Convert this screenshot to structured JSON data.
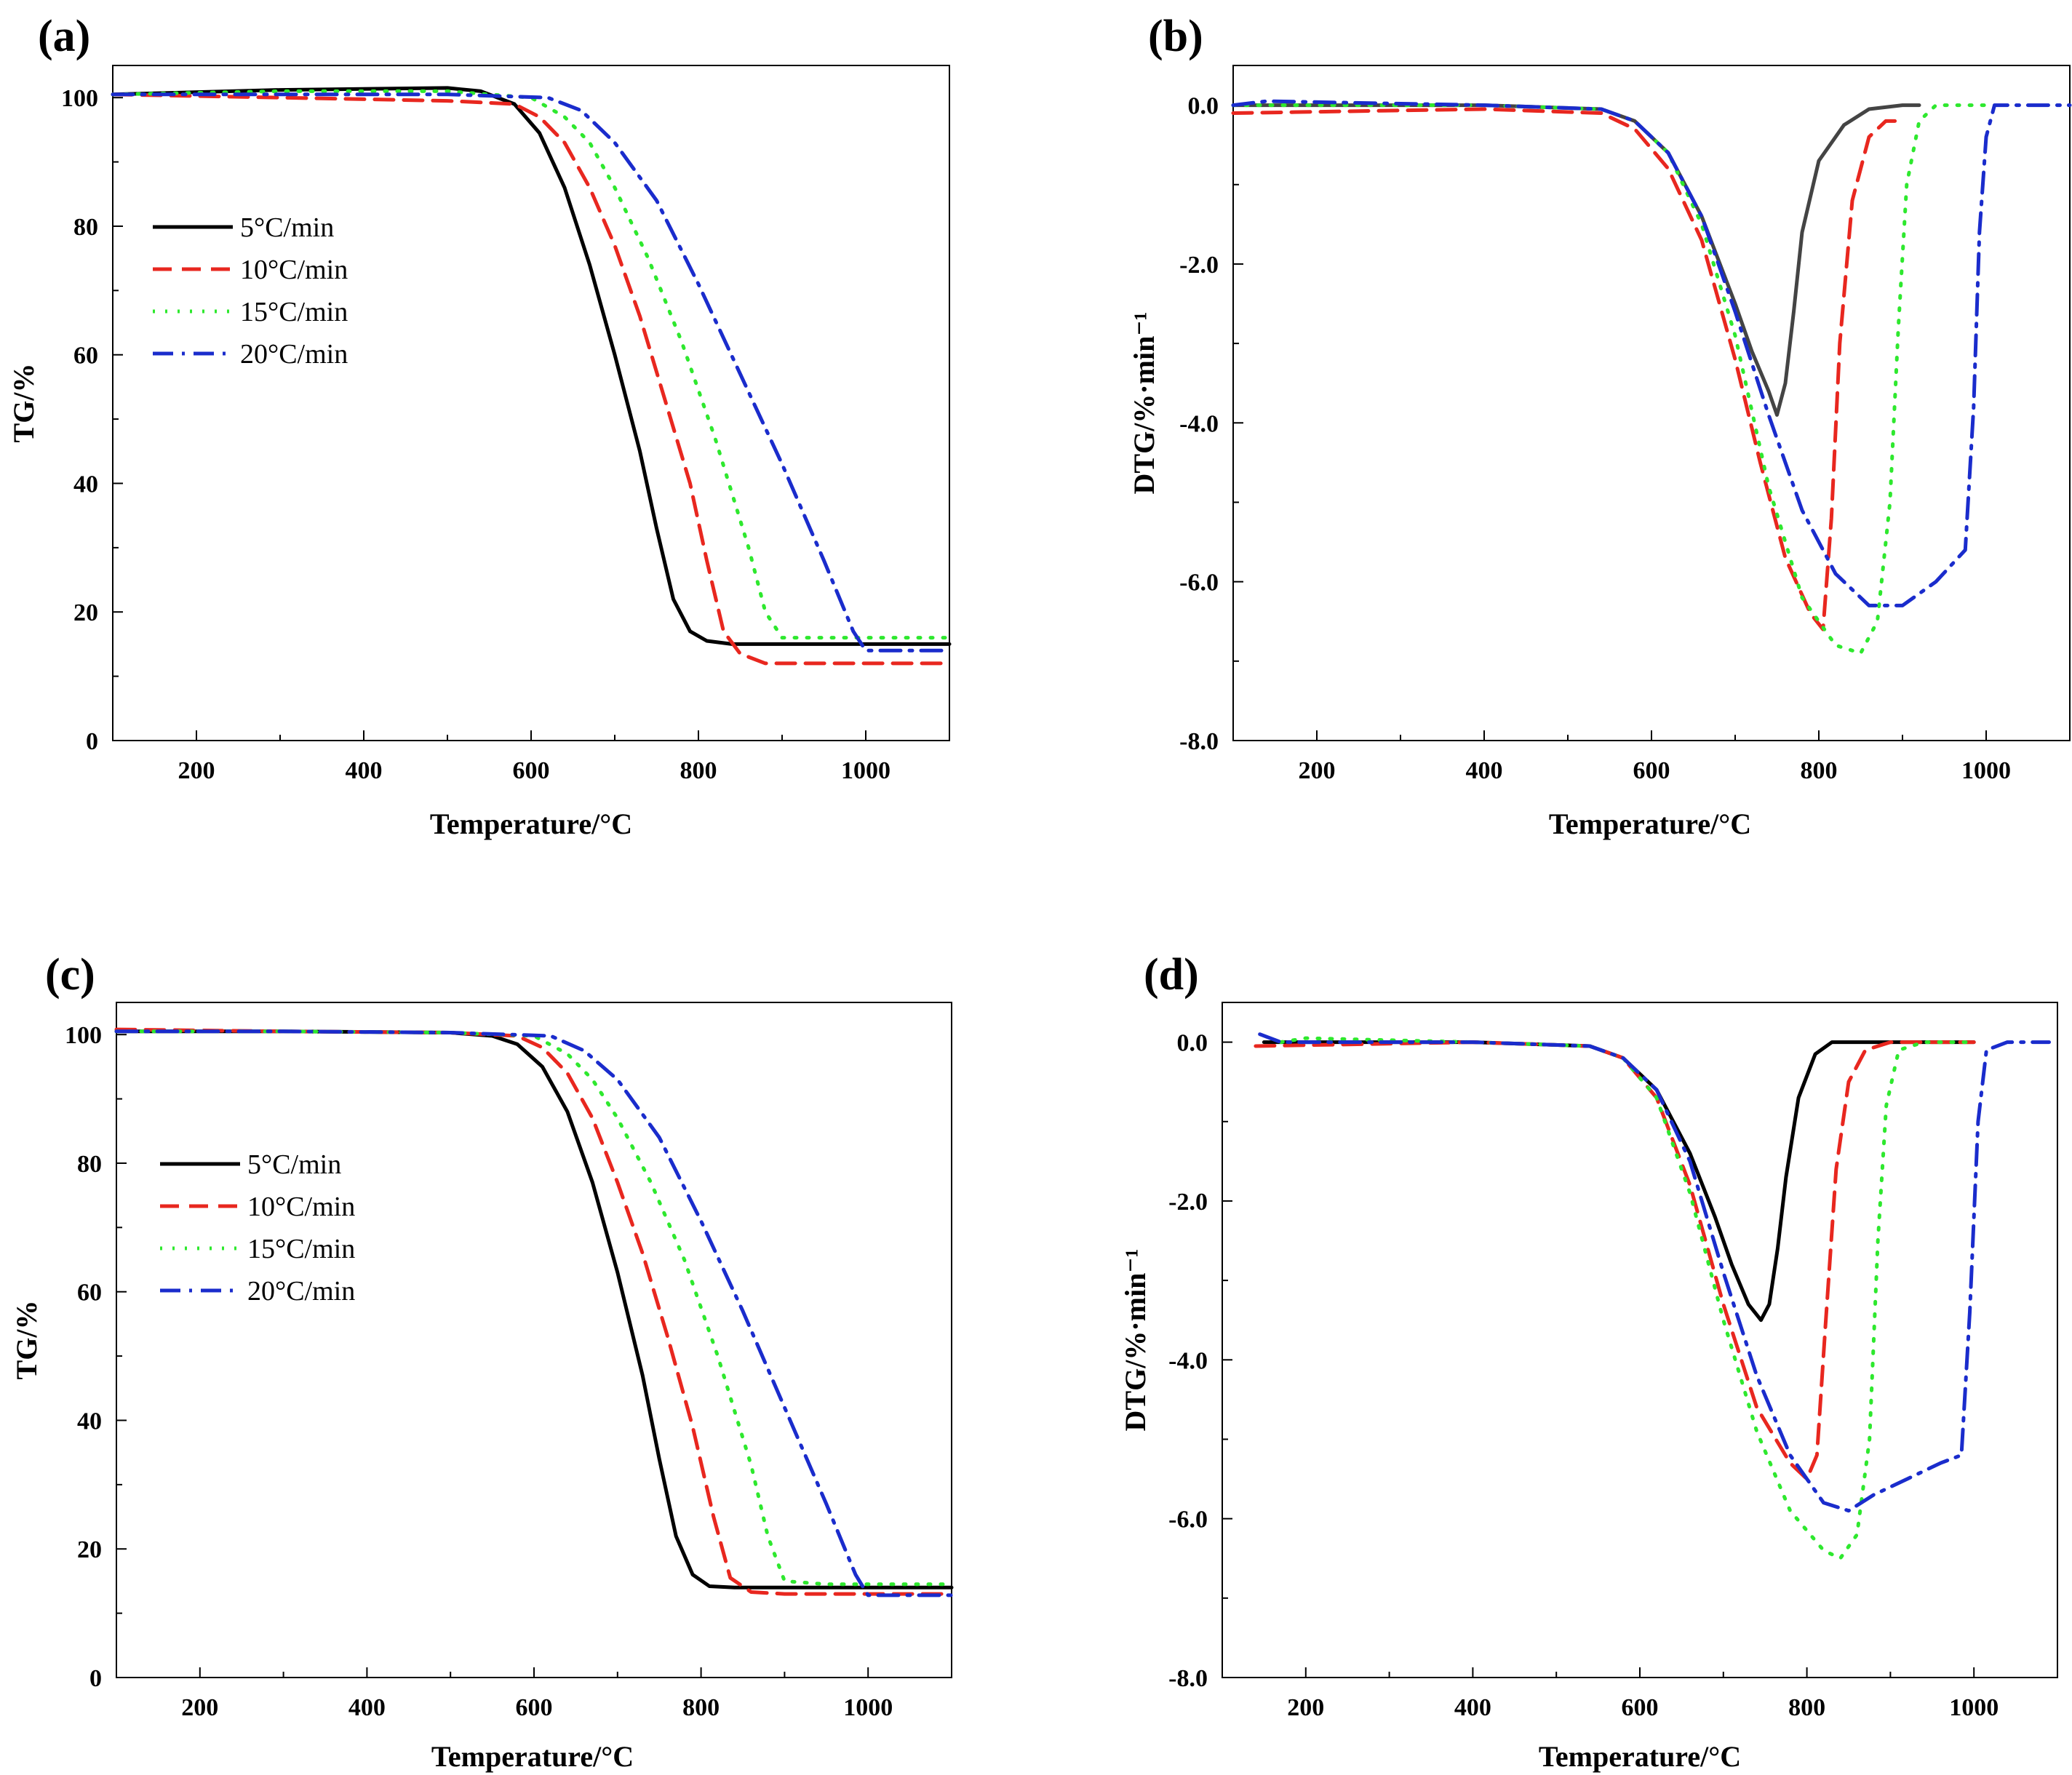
{
  "chart_data": [
    {
      "panel": "(a)",
      "type": "line",
      "xlabel": "Temperature/°C",
      "ylabel": "TG/%",
      "xlim": [
        100,
        1100
      ],
      "ylim": [
        0,
        105
      ],
      "xticks": [
        200,
        400,
        600,
        800,
        1000
      ],
      "yticks": [
        0,
        20,
        40,
        60,
        80,
        100
      ],
      "ytick_labels": [
        "0",
        "20",
        "40",
        "60",
        "80",
        "100"
      ],
      "legend": "left",
      "series": [
        {
          "name": "5°C/min",
          "color": "#000000",
          "dash": "solid",
          "x": [
            100,
            300,
            500,
            540,
            580,
            610,
            640,
            670,
            700,
            730,
            750,
            770,
            790,
            810,
            840,
            900,
            1000,
            1100
          ],
          "y": [
            100.5,
            101.2,
            101.5,
            101.0,
            99.0,
            94.5,
            86.0,
            74.0,
            60.0,
            45.0,
            33.0,
            22.0,
            17.0,
            15.5,
            15.0,
            15.0,
            15.0,
            15.0
          ]
        },
        {
          "name": "10°C/min",
          "color": "#e8271f",
          "dash": "dash",
          "x": [
            100,
            300,
            500,
            580,
            610,
            640,
            670,
            700,
            730,
            760,
            790,
            810,
            830,
            850,
            880,
            950,
            1100
          ],
          "y": [
            100.5,
            100.0,
            99.5,
            99.0,
            97.0,
            93.0,
            86.0,
            77.0,
            66.0,
            53.0,
            40.0,
            28.0,
            17.0,
            13.5,
            12.0,
            12.0,
            12.0
          ]
        },
        {
          "name": "15°C/min",
          "color": "#2ee82e",
          "dash": "dot",
          "x": [
            100,
            300,
            500,
            600,
            640,
            670,
            700,
            740,
            780,
            820,
            860,
            880,
            900,
            950,
            1100
          ],
          "y": [
            100.5,
            101.0,
            101.0,
            100.0,
            97.0,
            93.0,
            86.0,
            75.0,
            62.0,
            47.0,
            30.0,
            20.0,
            16.0,
            16.0,
            16.0
          ]
        },
        {
          "name": "20°C/min",
          "color": "#1a2ccc",
          "dash": "dashdot",
          "x": [
            100,
            300,
            500,
            620,
            660,
            700,
            750,
            800,
            850,
            900,
            950,
            985,
            1000,
            1100
          ],
          "y": [
            100.5,
            100.5,
            100.5,
            100.0,
            98.0,
            93.0,
            84.0,
            71.0,
            57.0,
            43.0,
            28.0,
            17.0,
            14.0,
            14.0
          ]
        }
      ]
    },
    {
      "panel": "(b)",
      "type": "line",
      "xlabel": "Temperature/°C",
      "ylabel": "DTG/%·min⁻¹",
      "xlim": [
        100,
        1100
      ],
      "ylim": [
        -8,
        0.5
      ],
      "xticks": [
        200,
        400,
        600,
        800,
        1000
      ],
      "yticks": [
        0,
        -2,
        -4,
        -6,
        -8
      ],
      "ytick_labels": [
        "0.0",
        "-2.0",
        "-4.0",
        "-6.0",
        "-8.0"
      ],
      "legend": "none",
      "series": [
        {
          "name": "5°C/min",
          "color": "#444444",
          "dash": "solid",
          "x": [
            100,
            400,
            540,
            580,
            620,
            660,
            700,
            720,
            740,
            750,
            760,
            770,
            780,
            800,
            830,
            860,
            900,
            920
          ],
          "y": [
            0.0,
            0.0,
            -0.05,
            -0.2,
            -0.6,
            -1.4,
            -2.5,
            -3.1,
            -3.6,
            -3.9,
            -3.5,
            -2.6,
            -1.6,
            -0.7,
            -0.25,
            -0.05,
            0.0,
            0.0
          ]
        },
        {
          "name": "10°C/min",
          "color": "#e8271f",
          "dash": "dash",
          "x": [
            100,
            400,
            540,
            580,
            620,
            660,
            700,
            730,
            760,
            790,
            805,
            815,
            825,
            840,
            860,
            880,
            900
          ],
          "y": [
            -0.1,
            -0.05,
            -0.1,
            -0.3,
            -0.8,
            -1.7,
            -3.2,
            -4.5,
            -5.7,
            -6.4,
            -6.6,
            -5.2,
            -3.0,
            -1.2,
            -0.4,
            -0.2,
            -0.2
          ]
        },
        {
          "name": "15°C/min",
          "color": "#2ee82e",
          "dash": "dot",
          "x": [
            100,
            400,
            540,
            580,
            620,
            660,
            700,
            740,
            780,
            820,
            850,
            870,
            885,
            895,
            905,
            920,
            940,
            1000
          ],
          "y": [
            0.0,
            0.0,
            -0.05,
            -0.2,
            -0.6,
            -1.5,
            -2.9,
            -4.8,
            -6.2,
            -6.8,
            -6.9,
            -6.5,
            -5.0,
            -2.8,
            -1.0,
            -0.2,
            0.0,
            0.0
          ]
        },
        {
          "name": "20°C/min",
          "color": "#1a2ccc",
          "dash": "dashdot",
          "x": [
            100,
            140,
            400,
            540,
            580,
            620,
            660,
            700,
            740,
            780,
            820,
            860,
            900,
            940,
            975,
            985,
            992,
            1000,
            1010,
            1030,
            1100
          ],
          "y": [
            0.0,
            0.05,
            0.0,
            -0.05,
            -0.2,
            -0.6,
            -1.4,
            -2.6,
            -3.9,
            -5.1,
            -5.9,
            -6.3,
            -6.3,
            -6.0,
            -5.6,
            -3.8,
            -1.6,
            -0.4,
            0.0,
            0.0,
            0.0
          ]
        }
      ]
    },
    {
      "panel": "(c)",
      "type": "line",
      "xlabel": "Temperature/°C",
      "ylabel": "TG/%",
      "xlim": [
        100,
        1100
      ],
      "ylim": [
        0,
        105
      ],
      "xticks": [
        200,
        400,
        600,
        800,
        1000
      ],
      "yticks": [
        0,
        20,
        40,
        60,
        80,
        100
      ],
      "ytick_labels": [
        "0",
        "20",
        "40",
        "60",
        "80",
        "100"
      ],
      "legend": "left",
      "series": [
        {
          "name": "5°C/min",
          "color": "#000000",
          "dash": "solid",
          "x": [
            100,
            300,
            500,
            550,
            580,
            610,
            640,
            670,
            700,
            730,
            750,
            770,
            790,
            810,
            840,
            900,
            1000,
            1100
          ],
          "y": [
            100.5,
            100.5,
            100.3,
            99.8,
            98.5,
            95.0,
            88.0,
            77.0,
            63.0,
            47.0,
            34.0,
            22.0,
            16.0,
            14.2,
            14.0,
            14.0,
            14.0,
            14.0
          ]
        },
        {
          "name": "10°C/min",
          "color": "#e8271f",
          "dash": "dash",
          "x": [
            100,
            300,
            500,
            580,
            610,
            640,
            670,
            700,
            730,
            760,
            790,
            815,
            835,
            860,
            900,
            1000,
            1100
          ],
          "y": [
            100.8,
            100.5,
            100.3,
            99.8,
            98.0,
            94.0,
            87.0,
            77.0,
            66.0,
            53.0,
            39.0,
            25.0,
            15.5,
            13.3,
            13.0,
            13.0,
            13.0
          ]
        },
        {
          "name": "15°C/min",
          "color": "#2ee82e",
          "dash": "dot",
          "x": [
            100,
            300,
            500,
            600,
            640,
            670,
            700,
            740,
            780,
            820,
            860,
            880,
            900,
            950,
            1100
          ],
          "y": [
            100.5,
            100.5,
            100.3,
            99.8,
            97.0,
            93.0,
            87.0,
            77.0,
            65.0,
            50.0,
            33.0,
            22.0,
            15.0,
            14.5,
            14.5
          ]
        },
        {
          "name": "20°C/min",
          "color": "#1a2ccc",
          "dash": "dashdot",
          "x": [
            100,
            300,
            500,
            620,
            660,
            700,
            750,
            800,
            850,
            900,
            950,
            985,
            1000,
            1100
          ],
          "y": [
            100.5,
            100.5,
            100.3,
            99.8,
            97.5,
            93.0,
            84.0,
            71.0,
            57.0,
            42.0,
            27.0,
            16.0,
            12.8,
            12.8
          ]
        }
      ]
    },
    {
      "panel": "(d)",
      "type": "line",
      "xlabel": "Temperature/°C",
      "ylabel": "DTG/%·min⁻¹",
      "xlim": [
        100,
        1100
      ],
      "ylim": [
        -8,
        0.5
      ],
      "xticks": [
        200,
        400,
        600,
        800,
        1000
      ],
      "yticks": [
        0,
        -2,
        -4,
        -6,
        -8
      ],
      "ytick_labels": [
        "0.0",
        "-2.0",
        "-4.0",
        "-6.0",
        "-8.0"
      ],
      "legend": "none",
      "series": [
        {
          "name": "5°C/min",
          "color": "#000000",
          "dash": "solid",
          "x": [
            150,
            400,
            540,
            580,
            620,
            660,
            690,
            710,
            730,
            745,
            755,
            765,
            775,
            790,
            810,
            830,
            900,
            1000
          ],
          "y": [
            0.0,
            0.0,
            -0.05,
            -0.2,
            -0.6,
            -1.4,
            -2.2,
            -2.8,
            -3.3,
            -3.5,
            -3.3,
            -2.6,
            -1.7,
            -0.7,
            -0.15,
            0.0,
            0.0,
            0.0
          ]
        },
        {
          "name": "10°C/min",
          "color": "#e8271f",
          "dash": "dash",
          "x": [
            140,
            400,
            540,
            580,
            620,
            660,
            700,
            740,
            780,
            800,
            812,
            822,
            835,
            850,
            870,
            900,
            1000
          ],
          "y": [
            -0.05,
            0.0,
            -0.05,
            -0.2,
            -0.7,
            -1.8,
            -3.3,
            -4.6,
            -5.3,
            -5.5,
            -5.2,
            -3.6,
            -1.6,
            -0.5,
            -0.1,
            0.0,
            0.0
          ]
        },
        {
          "name": "15°C/min",
          "color": "#2ee82e",
          "dash": "dot",
          "x": [
            170,
            200,
            400,
            540,
            580,
            620,
            660,
            700,
            740,
            780,
            820,
            840,
            860,
            875,
            885,
            895,
            910,
            940,
            1000
          ],
          "y": [
            0.0,
            0.05,
            0.0,
            -0.05,
            -0.2,
            -0.7,
            -1.9,
            -3.5,
            -4.9,
            -5.9,
            -6.4,
            -6.5,
            -6.2,
            -5.0,
            -2.5,
            -0.8,
            -0.1,
            0.0,
            0.0
          ]
        },
        {
          "name": "20°C/min",
          "color": "#1a2ccc",
          "dash": "dashdot",
          "x": [
            145,
            170,
            400,
            540,
            580,
            620,
            660,
            700,
            740,
            780,
            820,
            850,
            880,
            920,
            960,
            985,
            995,
            1005,
            1015,
            1040,
            1090
          ],
          "y": [
            0.1,
            0.0,
            0.0,
            -0.05,
            -0.2,
            -0.6,
            -1.5,
            -2.9,
            -4.2,
            -5.2,
            -5.8,
            -5.9,
            -5.7,
            -5.5,
            -5.3,
            -5.2,
            -3.4,
            -1.0,
            -0.1,
            0.0,
            0.0
          ]
        }
      ]
    }
  ]
}
